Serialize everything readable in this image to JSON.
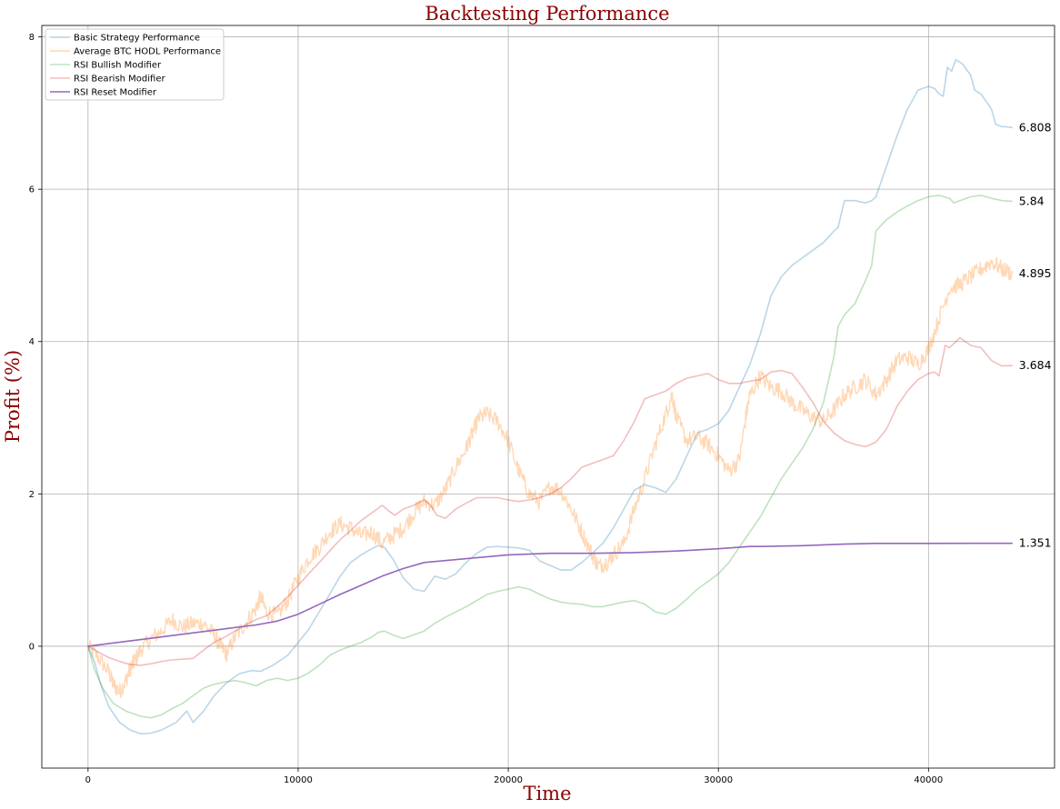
{
  "chart_data": {
    "type": "line",
    "title": "Backtesting Performance",
    "xlabel": "Time",
    "ylabel": "Profit (%)",
    "xlim": [
      -2200,
      46000
    ],
    "ylim": [
      -1.6,
      8.15
    ],
    "xticks": [
      0,
      10000,
      20000,
      30000,
      40000
    ],
    "xtick_labels": [
      "0",
      "10000",
      "20000",
      "30000",
      "40000"
    ],
    "yticks": [
      0,
      2,
      4,
      6,
      8
    ],
    "ytick_labels": [
      "0",
      "2",
      "4",
      "6",
      "8"
    ],
    "grid": true,
    "legend_position": "top-left",
    "series": [
      {
        "name": "Basic Strategy Performance",
        "color": "#1f77b4",
        "opacity": 0.3,
        "end_label": "6.808",
        "x": [
          0,
          300,
          600,
          1000,
          1500,
          2000,
          2500,
          3000,
          3500,
          4200,
          4700,
          5000,
          5500,
          6000,
          6600,
          7200,
          7800,
          8200,
          8800,
          9500,
          10000,
          10500,
          11000,
          11500,
          12000,
          12500,
          13000,
          13500,
          13800,
          14100,
          14500,
          15000,
          15500,
          16000,
          16500,
          17000,
          17500,
          18000,
          18500,
          19000,
          19500,
          20000,
          20500,
          21000,
          21500,
          22000,
          22500,
          23000,
          23500,
          24000,
          24500,
          25000,
          25500,
          26000,
          26500,
          27000,
          27500,
          28000,
          28500,
          29000,
          29500,
          30000,
          30500,
          31000,
          31500,
          32000,
          32500,
          33000,
          33500,
          34000,
          34500,
          35000,
          35500,
          35700,
          36000,
          36500,
          37000,
          37300,
          37500,
          38000,
          38500,
          39000,
          39500,
          40000,
          40300,
          40500,
          40700,
          40900,
          41100,
          41300,
          41600,
          42000,
          42200,
          42500,
          43000,
          43200,
          43500,
          43700,
          44000
        ],
        "y": [
          0,
          -0.2,
          -0.5,
          -0.8,
          -1.0,
          -1.1,
          -1.15,
          -1.14,
          -1.1,
          -1.0,
          -0.85,
          -1.0,
          -0.85,
          -0.65,
          -0.48,
          -0.36,
          -0.32,
          -0.33,
          -0.25,
          -0.12,
          0.05,
          0.22,
          0.45,
          0.68,
          0.92,
          1.1,
          1.2,
          1.28,
          1.32,
          1.3,
          1.15,
          0.9,
          0.75,
          0.72,
          0.92,
          0.88,
          0.95,
          1.1,
          1.22,
          1.3,
          1.31,
          1.3,
          1.29,
          1.26,
          1.12,
          1.06,
          1.0,
          1.0,
          1.1,
          1.22,
          1.35,
          1.55,
          1.8,
          2.05,
          2.12,
          2.08,
          2.02,
          2.2,
          2.5,
          2.8,
          2.85,
          2.92,
          3.1,
          3.4,
          3.7,
          4.1,
          4.6,
          4.85,
          5.0,
          5.1,
          5.2,
          5.3,
          5.45,
          5.5,
          5.85,
          5.85,
          5.82,
          5.85,
          5.9,
          6.3,
          6.7,
          7.05,
          7.3,
          7.35,
          7.32,
          7.25,
          7.22,
          7.6,
          7.55,
          7.7,
          7.65,
          7.5,
          7.3,
          7.25,
          7.05,
          6.85,
          6.82,
          6.82,
          6.808
        ]
      },
      {
        "name": "Average BTC HODL Performance",
        "color": "#ff7f0e",
        "opacity": 0.3,
        "noisy": true,
        "end_label": "4.895",
        "x": [
          0,
          500,
          1000,
          1200,
          1500,
          1800,
          2000,
          2200,
          2500,
          3000,
          3500,
          4000,
          4500,
          5000,
          5500,
          6000,
          6300,
          6600,
          7000,
          7500,
          8000,
          8200,
          8500,
          9000,
          9500,
          10000,
          10500,
          11000,
          11500,
          12000,
          12500,
          13000,
          13500,
          14000,
          14500,
          15000,
          15500,
          16000,
          16500,
          17000,
          17500,
          18000,
          18300,
          18600,
          19000,
          19500,
          20000,
          20500,
          21000,
          21500,
          22000,
          22500,
          23000,
          23500,
          24000,
          24300,
          24700,
          25000,
          25500,
          26000,
          26500,
          27000,
          27500,
          27800,
          28000,
          28500,
          29000,
          29500,
          30000,
          30500,
          31000,
          31300,
          31500,
          32000,
          32500,
          33000,
          33500,
          34000,
          34500,
          35000,
          35500,
          36000,
          36500,
          37000,
          37500,
          38000,
          38500,
          39000,
          39500,
          40000,
          40500,
          41000,
          41500,
          42000,
          42500,
          43000,
          43500,
          44000
        ],
        "y": [
          0,
          -0.15,
          -0.35,
          -0.5,
          -0.6,
          -0.45,
          -0.3,
          -0.2,
          -0.05,
          0.1,
          0.2,
          0.35,
          0.25,
          0.3,
          0.3,
          0.15,
          0.0,
          -0.1,
          0.12,
          0.3,
          0.5,
          0.65,
          0.45,
          0.4,
          0.6,
          0.9,
          1.15,
          1.3,
          1.5,
          1.6,
          1.55,
          1.45,
          1.5,
          1.35,
          1.45,
          1.55,
          1.75,
          1.9,
          1.85,
          2.05,
          2.35,
          2.6,
          2.8,
          3.0,
          3.05,
          2.95,
          2.7,
          2.3,
          2.0,
          1.9,
          2.1,
          2.05,
          1.8,
          1.5,
          1.2,
          1.05,
          1.1,
          1.2,
          1.35,
          1.8,
          2.2,
          2.65,
          3.05,
          3.3,
          3.0,
          2.7,
          2.75,
          2.65,
          2.5,
          2.3,
          2.45,
          3.0,
          3.3,
          3.55,
          3.4,
          3.35,
          3.2,
          3.1,
          3.0,
          2.95,
          3.1,
          3.3,
          3.4,
          3.5,
          3.3,
          3.5,
          3.75,
          3.8,
          3.7,
          3.9,
          4.3,
          4.7,
          4.75,
          4.85,
          4.95,
          5.05,
          4.95,
          4.895
        ]
      },
      {
        "name": "RSI Bullish Modifier",
        "color": "#2ca02c",
        "opacity": 0.3,
        "end_label": "5.84",
        "x": [
          0,
          300,
          700,
          1200,
          1800,
          2500,
          3000,
          3500,
          4000,
          4500,
          5000,
          5500,
          6000,
          6500,
          7000,
          7500,
          8000,
          8500,
          9000,
          9500,
          10000,
          10500,
          11000,
          11500,
          12000,
          12500,
          13000,
          13500,
          13800,
          14100,
          14500,
          15000,
          15500,
          16000,
          16500,
          17000,
          17500,
          18000,
          18500,
          19000,
          19500,
          20000,
          20500,
          21000,
          21500,
          22000,
          22500,
          23000,
          23500,
          24000,
          24500,
          25000,
          25500,
          26000,
          26500,
          27000,
          27500,
          28000,
          28500,
          29000,
          29500,
          30000,
          30500,
          31000,
          31500,
          32000,
          32500,
          33000,
          33500,
          34000,
          34500,
          35000,
          35500,
          35700,
          36000,
          36500,
          37000,
          37300,
          37500,
          38000,
          38500,
          39000,
          39500,
          40000,
          40500,
          41000,
          41200,
          41500,
          42000,
          42500,
          43000,
          43500,
          44000
        ],
        "y": [
          0,
          -0.3,
          -0.55,
          -0.75,
          -0.85,
          -0.92,
          -0.94,
          -0.9,
          -0.82,
          -0.75,
          -0.65,
          -0.55,
          -0.5,
          -0.47,
          -0.45,
          -0.48,
          -0.52,
          -0.45,
          -0.42,
          -0.45,
          -0.42,
          -0.35,
          -0.25,
          -0.12,
          -0.05,
          0.0,
          0.05,
          0.12,
          0.18,
          0.2,
          0.15,
          0.1,
          0.15,
          0.2,
          0.3,
          0.38,
          0.45,
          0.52,
          0.6,
          0.68,
          0.72,
          0.75,
          0.78,
          0.75,
          0.68,
          0.62,
          0.58,
          0.56,
          0.55,
          0.52,
          0.52,
          0.55,
          0.58,
          0.6,
          0.55,
          0.45,
          0.42,
          0.5,
          0.62,
          0.75,
          0.85,
          0.95,
          1.1,
          1.3,
          1.5,
          1.7,
          1.95,
          2.2,
          2.4,
          2.6,
          2.85,
          3.2,
          3.8,
          4.2,
          4.35,
          4.5,
          4.8,
          5.0,
          5.45,
          5.6,
          5.7,
          5.78,
          5.85,
          5.9,
          5.92,
          5.88,
          5.82,
          5.85,
          5.9,
          5.92,
          5.88,
          5.85,
          5.84
        ]
      },
      {
        "name": "RSI Bearish Modifier",
        "color": "#d62728",
        "opacity": 0.3,
        "end_label": "3.684",
        "x": [
          0,
          500,
          1000,
          1500,
          2000,
          2500,
          3000,
          3500,
          4000,
          4500,
          5000,
          5500,
          6000,
          6500,
          7000,
          7500,
          8000,
          8500,
          9000,
          9500,
          10000,
          10500,
          11000,
          11500,
          12000,
          12500,
          13000,
          13500,
          14000,
          14300,
          14600,
          15000,
          15500,
          16000,
          16300,
          16600,
          17000,
          17500,
          18000,
          18500,
          19000,
          19500,
          20000,
          20500,
          21000,
          21500,
          22000,
          22500,
          23000,
          23500,
          24000,
          24500,
          25000,
          25500,
          26000,
          26500,
          27000,
          27500,
          28000,
          28500,
          29000,
          29500,
          30000,
          30500,
          31000,
          31500,
          32000,
          32500,
          33000,
          33500,
          34000,
          34500,
          35000,
          35500,
          36000,
          36500,
          37000,
          37500,
          38000,
          38500,
          39000,
          39500,
          40000,
          40300,
          40500,
          40800,
          41000,
          41500,
          42000,
          42500,
          43000,
          43500,
          44000
        ],
        "y": [
          0,
          -0.08,
          -0.15,
          -0.2,
          -0.24,
          -0.25,
          -0.23,
          -0.2,
          -0.18,
          -0.17,
          -0.16,
          -0.05,
          0.05,
          0.12,
          0.2,
          0.28,
          0.35,
          0.4,
          0.52,
          0.65,
          0.8,
          0.95,
          1.1,
          1.25,
          1.4,
          1.52,
          1.65,
          1.75,
          1.85,
          1.78,
          1.72,
          1.8,
          1.85,
          1.92,
          1.85,
          1.72,
          1.68,
          1.8,
          1.88,
          1.95,
          1.95,
          1.95,
          1.92,
          1.9,
          1.92,
          1.95,
          2.0,
          2.08,
          2.2,
          2.35,
          2.4,
          2.45,
          2.5,
          2.7,
          2.95,
          3.25,
          3.3,
          3.35,
          3.45,
          3.52,
          3.55,
          3.58,
          3.5,
          3.45,
          3.45,
          3.48,
          3.5,
          3.6,
          3.62,
          3.58,
          3.4,
          3.2,
          2.95,
          2.8,
          2.7,
          2.65,
          2.62,
          2.68,
          2.85,
          3.15,
          3.35,
          3.5,
          3.58,
          3.6,
          3.55,
          3.95,
          3.92,
          4.05,
          3.95,
          3.92,
          3.75,
          3.68,
          3.684
        ]
      },
      {
        "name": "RSI Reset Modifier",
        "color": "#9467bd",
        "opacity": 1.0,
        "end_label": "1.351",
        "x": [
          0,
          2000,
          4000,
          6000,
          8000,
          9000,
          10000,
          11000,
          12000,
          13000,
          14000,
          15000,
          16000,
          18000,
          20000,
          22000,
          24000,
          26000,
          28000,
          30000,
          31500,
          32000,
          34000,
          36000,
          37500,
          40000,
          42000,
          44000
        ],
        "y": [
          0,
          0.07,
          0.14,
          0.21,
          0.28,
          0.33,
          0.42,
          0.55,
          0.68,
          0.8,
          0.92,
          1.02,
          1.1,
          1.15,
          1.2,
          1.22,
          1.22,
          1.23,
          1.25,
          1.28,
          1.31,
          1.31,
          1.32,
          1.34,
          1.35,
          1.35,
          1.351,
          1.351
        ]
      }
    ]
  }
}
